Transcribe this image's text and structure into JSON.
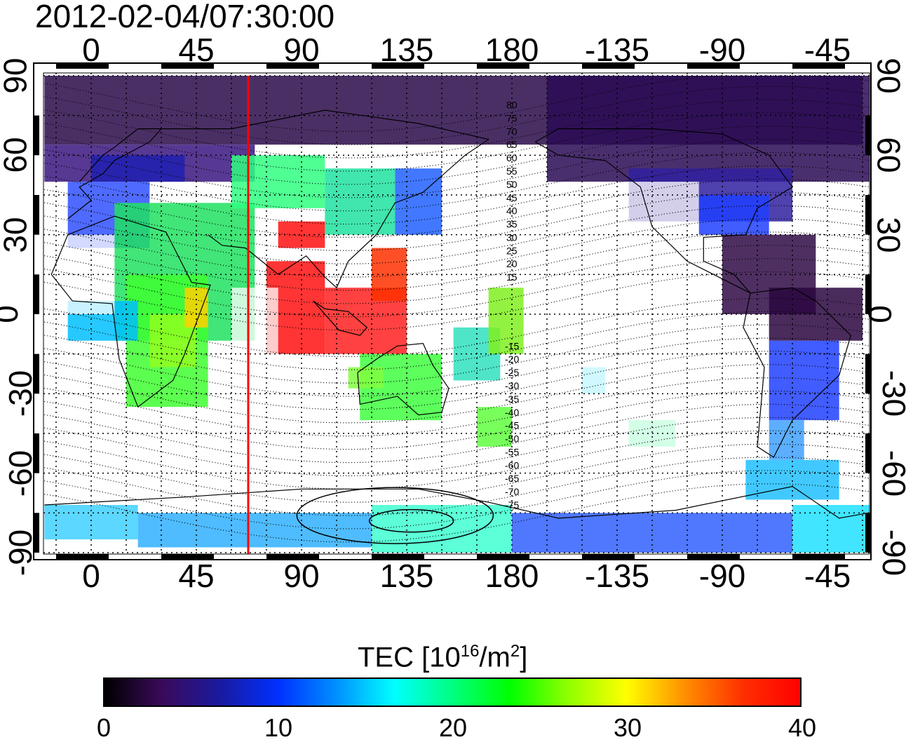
{
  "timestamp": "2012-02-04/07:30:00",
  "top_lon_labels": [
    "0",
    "45",
    "90",
    "135",
    "180",
    "-135",
    "-90",
    "-45"
  ],
  "bottom_lon_labels": [
    "0",
    "45",
    "90",
    "135",
    "180",
    "-135",
    "-90",
    "-45"
  ],
  "left_lat_labels": [
    "90",
    "60",
    "30",
    "0",
    "-30",
    "-60",
    "-90"
  ],
  "right_lat_labels": [
    "90",
    "60",
    "30",
    "0",
    "-30",
    "-60",
    "-90"
  ],
  "magnetic_lat_labels_north": [
    "80",
    "75",
    "70",
    "65",
    "60",
    "55",
    "50",
    "45",
    "40",
    "35",
    "30",
    "25",
    "20",
    "15"
  ],
  "magnetic_lat_labels_south": [
    "15",
    "20",
    "25",
    "30",
    "35",
    "40",
    "45",
    "50",
    "55",
    "60",
    "65",
    "70",
    "75"
  ],
  "colorbar": {
    "title_prefix": "TEC  [10",
    "title_exp": "16",
    "title_mid": "/m",
    "title_exp2": "2",
    "title_suffix": "]",
    "ticks": [
      "0",
      "10",
      "20",
      "30",
      "40"
    ],
    "min": 0,
    "max": 40,
    "colors": [
      "#000000",
      "#3a0a5a",
      "#1a1aa0",
      "#0030ff",
      "#0090ff",
      "#00ffff",
      "#00ff80",
      "#00ff00",
      "#90ff00",
      "#ffff00",
      "#ff9000",
      "#ff3000",
      "#ff0000"
    ]
  },
  "terminator_line_color": "#ff0000",
  "map": {
    "lon_center": 180,
    "lat_range": [
      -90,
      90
    ],
    "grid": "dotted, every 15 degrees"
  }
}
